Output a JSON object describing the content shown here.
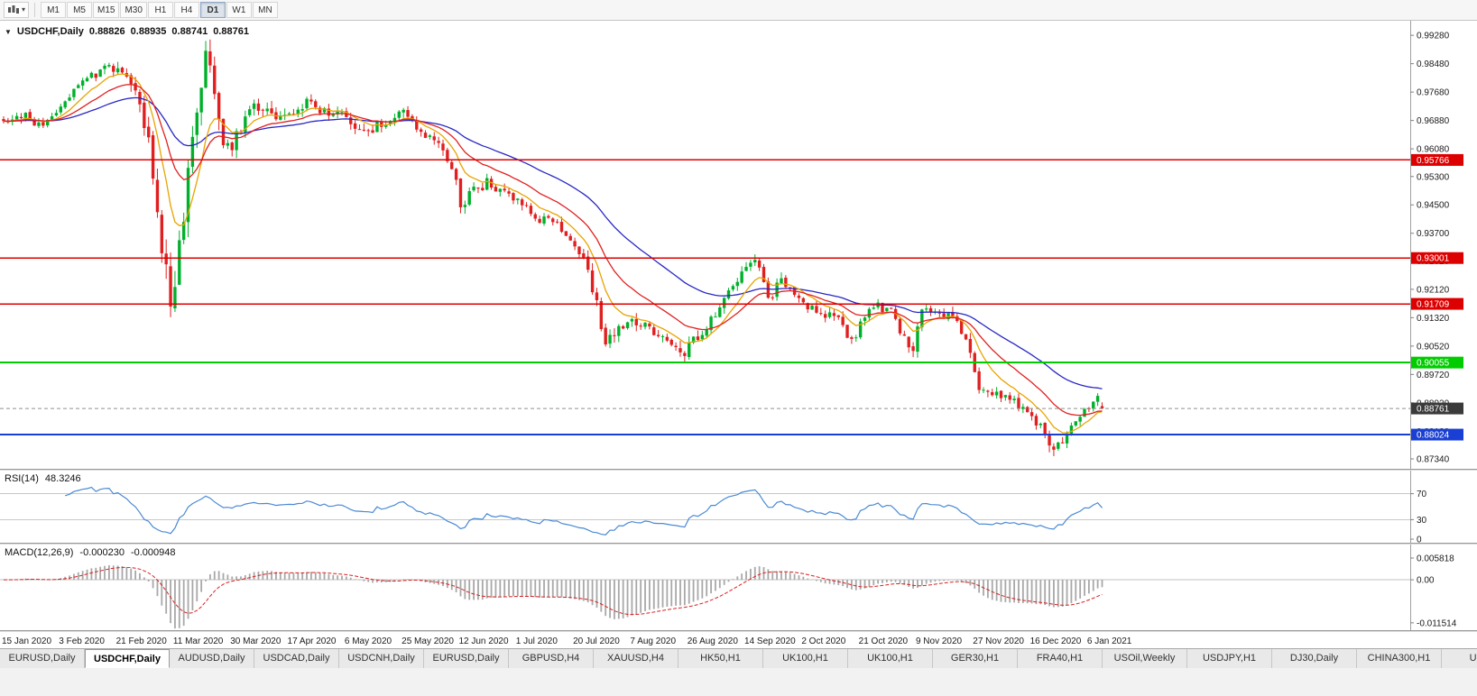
{
  "toolbar": {
    "timeframes": [
      "M1",
      "M5",
      "M15",
      "M30",
      "H1",
      "H4",
      "D1",
      "W1",
      "MN"
    ],
    "active_timeframe": "D1"
  },
  "main_chart": {
    "title": "USDCHF,Daily",
    "ohlc": {
      "open": "0.88826",
      "high": "0.88935",
      "low": "0.88741",
      "close": "0.88761"
    }
  },
  "indicators": {
    "rsi": {
      "title": "RSI(14)",
      "value": "48.3246"
    },
    "macd": {
      "title": "MACD(12,26,9)",
      "values": [
        "-0.000230",
        "-0.000948"
      ]
    }
  },
  "tabs": {
    "active_index": 1,
    "labels": [
      "EURUSD,Daily",
      "USDCHF,Daily",
      "AUDUSD,Daily",
      "USDCAD,Daily",
      "USDCNH,Daily",
      "EURUSD,Daily",
      "GBPUSD,H4",
      "XAUUSD,H4",
      "HK50,H1",
      "UK100,H1",
      "UK100,H1",
      "GER30,H1",
      "FRA40,H1",
      "USOil,Weekly",
      "USDJPY,H1",
      "DJ30,Daily",
      "CHINA300,H1",
      "USOil,"
    ]
  },
  "chart_data": {
    "type": "candlestick",
    "symbol": "USDCHF",
    "timeframe": "Daily",
    "candle_count": 251,
    "candles_per_label": 13,
    "seed": 20210113,
    "x_labels": [
      "15 Jan 2020",
      "3 Feb 2020",
      "21 Feb 2020",
      "11 Mar 2020",
      "30 Mar 2020",
      "17 Apr 2020",
      "6 May 2020",
      "25 May 2020",
      "12 Jun 2020",
      "1 Jul 2020",
      "20 Jul 2020",
      "7 Aug 2020",
      "26 Aug 2020",
      "14 Sep 2020",
      "2 Oct 2020",
      "21 Oct 2020",
      "9 Nov 2020",
      "27 Nov 2020",
      "16 Dec 2020",
      "6 Jan 2021"
    ],
    "price_anchors": [
      [
        0,
        0.969,
        0.0045
      ],
      [
        5,
        0.9702,
        0.0045
      ],
      [
        9,
        0.9662,
        0.0045
      ],
      [
        13,
        0.9728,
        0.0045
      ],
      [
        18,
        0.9788,
        0.0045
      ],
      [
        23,
        0.9845,
        0.005
      ],
      [
        26,
        0.9832,
        0.006
      ],
      [
        30,
        0.9756,
        0.007
      ],
      [
        33,
        0.964,
        0.009
      ],
      [
        36,
        0.933,
        0.012
      ],
      [
        38,
        0.9188,
        0.013
      ],
      [
        40,
        0.932,
        0.013
      ],
      [
        43,
        0.962,
        0.012
      ],
      [
        46,
        0.9888,
        0.011
      ],
      [
        48,
        0.976,
        0.01
      ],
      [
        50,
        0.9645,
        0.009
      ],
      [
        52,
        0.961,
        0.008
      ],
      [
        55,
        0.9692,
        0.007
      ],
      [
        58,
        0.973,
        0.006
      ],
      [
        62,
        0.9682,
        0.006
      ],
      [
        65,
        0.97,
        0.0055
      ],
      [
        69,
        0.9744,
        0.005
      ],
      [
        73,
        0.9716,
        0.005
      ],
      [
        78,
        0.97,
        0.005
      ],
      [
        82,
        0.9646,
        0.005
      ],
      [
        86,
        0.968,
        0.005
      ],
      [
        91,
        0.971,
        0.0045
      ],
      [
        95,
        0.9656,
        0.0045
      ],
      [
        99,
        0.9616,
        0.0045
      ],
      [
        102,
        0.956,
        0.005
      ],
      [
        104,
        0.9456,
        0.006
      ],
      [
        107,
        0.949,
        0.0055
      ],
      [
        110,
        0.9514,
        0.005
      ],
      [
        114,
        0.9482,
        0.0045
      ],
      [
        117,
        0.9464,
        0.0045
      ],
      [
        121,
        0.9416,
        0.0042
      ],
      [
        125,
        0.94,
        0.0042
      ],
      [
        128,
        0.9372,
        0.0042
      ],
      [
        130,
        0.934,
        0.005
      ],
      [
        133,
        0.9262,
        0.006
      ],
      [
        135,
        0.9162,
        0.0065
      ],
      [
        137,
        0.9072,
        0.0065
      ],
      [
        140,
        0.9094,
        0.0055
      ],
      [
        143,
        0.9126,
        0.005
      ],
      [
        147,
        0.9102,
        0.0048
      ],
      [
        151,
        0.9076,
        0.0048
      ],
      [
        154,
        0.9022,
        0.006
      ],
      [
        156,
        0.9054,
        0.005
      ],
      [
        160,
        0.9104,
        0.0048
      ],
      [
        164,
        0.9184,
        0.0048
      ],
      [
        168,
        0.9264,
        0.0046
      ],
      [
        171,
        0.9298,
        0.0045
      ],
      [
        174,
        0.9186,
        0.006
      ],
      [
        177,
        0.9234,
        0.005
      ],
      [
        180,
        0.9196,
        0.0045
      ],
      [
        182,
        0.917,
        0.0042
      ],
      [
        186,
        0.9148,
        0.0042
      ],
      [
        190,
        0.913,
        0.0042
      ],
      [
        193,
        0.9064,
        0.005
      ],
      [
        196,
        0.9136,
        0.005
      ],
      [
        199,
        0.9164,
        0.0042
      ],
      [
        202,
        0.9146,
        0.0042
      ],
      [
        205,
        0.9072,
        0.0055
      ],
      [
        207,
        0.905,
        0.0055
      ],
      [
        209,
        0.9148,
        0.005
      ],
      [
        212,
        0.9136,
        0.0042
      ],
      [
        215,
        0.9142,
        0.0042
      ],
      [
        218,
        0.91,
        0.005
      ],
      [
        220,
        0.903,
        0.005
      ],
      [
        222,
        0.8942,
        0.005
      ],
      [
        225,
        0.8906,
        0.0045
      ],
      [
        228,
        0.8922,
        0.0042
      ],
      [
        231,
        0.8882,
        0.0042
      ],
      [
        234,
        0.8856,
        0.0042
      ],
      [
        237,
        0.881,
        0.005
      ],
      [
        239,
        0.8768,
        0.007
      ],
      [
        241,
        0.879,
        0.005
      ],
      [
        243,
        0.8824,
        0.0042
      ],
      [
        245,
        0.8856,
        0.004
      ],
      [
        247,
        0.8882,
        0.0038
      ],
      [
        249,
        0.8902,
        0.0035
      ],
      [
        250,
        0.88761,
        0.0035
      ]
    ],
    "last_candle": {
      "open": 0.88826,
      "high": 0.88935,
      "low": 0.88741,
      "close": 0.88761
    },
    "candle_colors": {
      "up": "#00b02c",
      "down": "#e02020"
    },
    "y_axis": {
      "price_min": 0.8706,
      "price_max": 0.9964,
      "ticks": [
        "0.99280",
        "0.98480",
        "0.97680",
        "0.96880",
        "0.96080",
        "0.95300",
        "0.94500",
        "0.93700",
        "0.92920",
        "0.92120",
        "0.91320",
        "0.90520",
        "0.89720",
        "0.88920",
        "0.88120",
        "0.87340"
      ]
    },
    "moving_averages": [
      {
        "name": "slow-ma-line",
        "period": 45,
        "color": "#2727c4"
      },
      {
        "name": "fast-ma-line",
        "period": 9,
        "color": "#e8a400"
      },
      {
        "name": "mid-ma-line",
        "period": 20,
        "color": "#e02020"
      }
    ],
    "horizontal_lines": [
      {
        "name": "resistance-1",
        "price": 0.95766,
        "label": "0.95766",
        "color": "#dd0000",
        "width": 1.6
      },
      {
        "name": "resistance-2",
        "price": 0.93001,
        "label": "0.93001",
        "color": "#dd0000",
        "width": 1.6
      },
      {
        "name": "resistance-3",
        "price": 0.91709,
        "label": "0.91709",
        "color": "#dd0000",
        "width": 1.6
      },
      {
        "name": "support-green",
        "price": 0.90055,
        "label": "0.90055",
        "color": "#00cc00",
        "width": 2
      },
      {
        "name": "support-blue",
        "price": 0.88024,
        "label": "0.88024",
        "color": "#1a3fd4",
        "width": 2
      }
    ],
    "current_price": {
      "value": 0.88761,
      "label": "0.88761",
      "badge_color": "#3a3a3a"
    },
    "rsi": {
      "period": 14,
      "color": "#4a8ad4",
      "levels": [
        70,
        30
      ],
      "axis_ticks": [
        {
          "label": "70",
          "value": 70
        },
        {
          "label": "30",
          "value": 30
        },
        {
          "label": "0",
          "value": 0
        }
      ]
    },
    "macd": {
      "fast": 12,
      "slow": 26,
      "signal_period": 9,
      "histogram_color": "#a8a8a8",
      "signal_color": "#d82020",
      "value_min": -0.013,
      "value_max": 0.0075,
      "axis_ticks": [
        {
          "label": "0.005818",
          "value": 0.005818
        },
        {
          "label": "0.00",
          "value": 0
        },
        {
          "label": "-0.011514",
          "value": -0.011514
        }
      ]
    }
  }
}
